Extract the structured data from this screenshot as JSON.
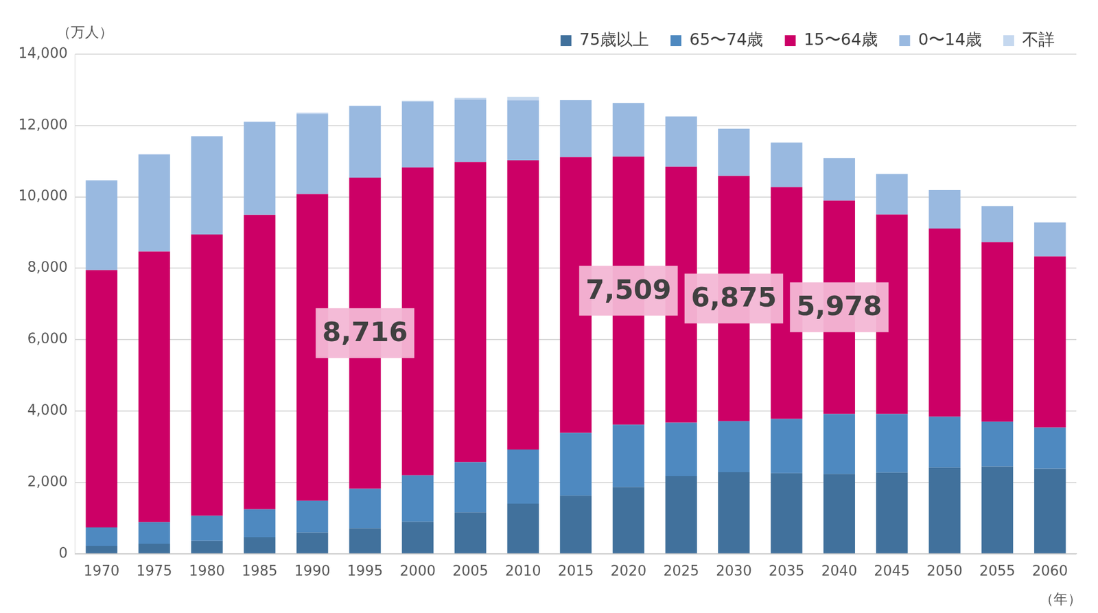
{
  "chart_data": {
    "type": "bar",
    "stacked": true,
    "y_label": "（万人）",
    "x_label": "（年）",
    "categories": [
      "1970",
      "1975",
      "1980",
      "1985",
      "1990",
      "1995",
      "2000",
      "2005",
      "2010",
      "2015",
      "2020",
      "2025",
      "2030",
      "2035",
      "2040",
      "2045",
      "2050",
      "2055",
      "2060"
    ],
    "series": [
      {
        "name": "75歳以上",
        "color": "#41719c",
        "values": [
          224,
          284,
          366,
          468,
          597,
          717,
          901,
          1160,
          1407,
          1632,
          1872,
          2180,
          2288,
          2260,
          2239,
          2277,
          2417,
          2446,
          2387
        ]
      },
      {
        "name": "65〜74歳",
        "color": "#4e89c0",
        "values": [
          515,
          604,
          699,
          779,
          892,
          1109,
          1301,
          1407,
          1517,
          1755,
          1747,
          1497,
          1428,
          1522,
          1681,
          1643,
          1424,
          1258,
          1154
        ]
      },
      {
        "name": "15〜64歳",
        "color": "#cc0066",
        "values": [
          7212,
          7581,
          7883,
          8251,
          8590,
          8716,
          8622,
          8409,
          8103,
          7728,
          7509,
          7170,
          6875,
          6494,
          5978,
          5584,
          5275,
          5028,
          4793
        ]
      },
      {
        "name": "0〜14歳",
        "color": "#99b9e0",
        "values": [
          2515,
          2722,
          2751,
          2603,
          2249,
          2001,
          1847,
          1752,
          1680,
          1595,
          1503,
          1407,
          1321,
          1246,
          1194,
          1138,
          1077,
          1012,
          951
        ]
      },
      {
        "name": "不詳",
        "color": "#c5d8ef",
        "values": [
          0,
          11,
          6,
          10,
          33,
          15,
          23,
          48,
          98,
          0,
          0,
          0,
          0,
          0,
          0,
          0,
          0,
          0,
          0
        ]
      }
    ],
    "ylim": [
      0,
      14000
    ],
    "yticks": [
      {
        "value": 0,
        "label": "0"
      },
      {
        "value": 2000,
        "label": "2,000"
      },
      {
        "value": 4000,
        "label": "4,000"
      },
      {
        "value": 6000,
        "label": "6,000"
      },
      {
        "value": 8000,
        "label": "8,000"
      },
      {
        "value": 10000,
        "label": "10,000"
      },
      {
        "value": 12000,
        "label": "12,000"
      },
      {
        "value": 14000,
        "label": "14,000"
      }
    ],
    "grid": true,
    "legend": "top-right",
    "annotations": [
      {
        "category": "1995",
        "series": "15〜64歳",
        "text": "8,716"
      },
      {
        "category": "2020",
        "series": "15〜64歳",
        "text": "7,509"
      },
      {
        "category": "2030",
        "series": "15〜64歳",
        "text": "6,875"
      },
      {
        "category": "2040",
        "series": "15〜64歳",
        "text": "5,978"
      }
    ]
  }
}
